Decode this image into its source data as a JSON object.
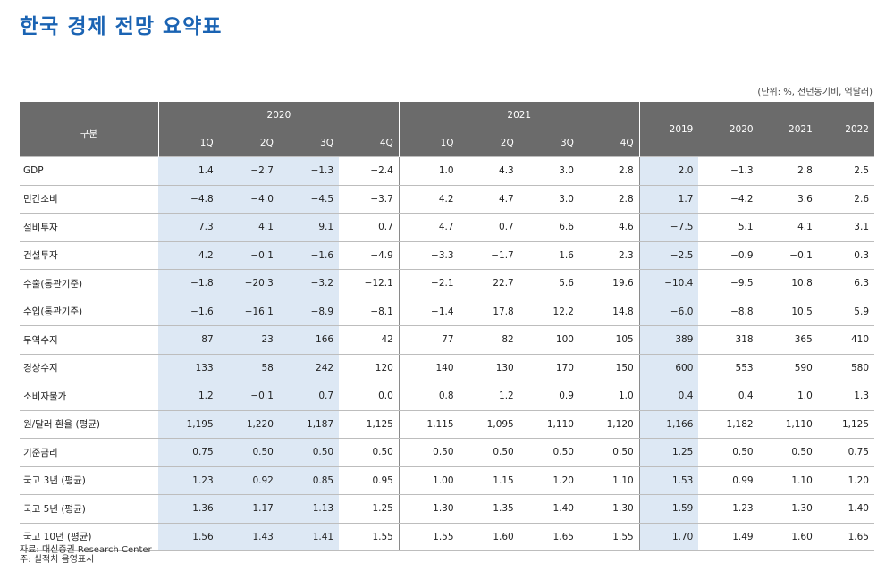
{
  "title": "한국 경제 전망 요약표",
  "unit": "(단위: %, 전년동기비, 억달러)",
  "header": {
    "label": "구분",
    "year_2020": "2020",
    "year_2021": "2021",
    "quarters": [
      "1Q",
      "2Q",
      "3Q",
      "4Q",
      "1Q",
      "2Q",
      "3Q",
      "4Q"
    ],
    "annual": [
      "2019",
      "2020",
      "2021",
      "2022"
    ]
  },
  "rows": [
    {
      "label": "GDP",
      "values": [
        "1.4",
        "−2.7",
        "−1.3",
        "−2.4",
        "1.0",
        "4.3",
        "3.0",
        "2.8",
        "2.0",
        "−1.3",
        "2.8",
        "2.5"
      ]
    },
    {
      "label": "민간소비",
      "values": [
        "−4.8",
        "−4.0",
        "−4.5",
        "−3.7",
        "4.2",
        "4.7",
        "3.0",
        "2.8",
        "1.7",
        "−4.2",
        "3.6",
        "2.6"
      ]
    },
    {
      "label": "설비투자",
      "values": [
        "7.3",
        "4.1",
        "9.1",
        "0.7",
        "4.7",
        "0.7",
        "6.6",
        "4.6",
        "−7.5",
        "5.1",
        "4.1",
        "3.1"
      ]
    },
    {
      "label": "건설투자",
      "values": [
        "4.2",
        "−0.1",
        "−1.6",
        "−4.9",
        "−3.3",
        "−1.7",
        "1.6",
        "2.3",
        "−2.5",
        "−0.9",
        "−0.1",
        "0.3"
      ]
    },
    {
      "label": "수출(통관기준)",
      "values": [
        "−1.8",
        "−20.3",
        "−3.2",
        "−12.1",
        "−2.1",
        "22.7",
        "5.6",
        "19.6",
        "−10.4",
        "−9.5",
        "10.8",
        "6.3"
      ]
    },
    {
      "label": "수입(통관기준)",
      "values": [
        "−1.6",
        "−16.1",
        "−8.9",
        "−8.1",
        "−1.4",
        "17.8",
        "12.2",
        "14.8",
        "−6.0",
        "−8.8",
        "10.5",
        "5.9"
      ]
    },
    {
      "label": "무역수지",
      "values": [
        "87",
        "23",
        "166",
        "42",
        "77",
        "82",
        "100",
        "105",
        "389",
        "318",
        "365",
        "410"
      ]
    },
    {
      "label": "경상수지",
      "values": [
        "133",
        "58",
        "242",
        "120",
        "140",
        "130",
        "170",
        "150",
        "600",
        "553",
        "590",
        "580"
      ]
    },
    {
      "label": "소비자물가",
      "values": [
        "1.2",
        "−0.1",
        "0.7",
        "0.0",
        "0.8",
        "1.2",
        "0.9",
        "1.0",
        "0.4",
        "0.4",
        "1.0",
        "1.3"
      ]
    },
    {
      "label": "원/달러 환율 (평균)",
      "values": [
        "1,195",
        "1,220",
        "1,187",
        "1,125",
        "1,115",
        "1,095",
        "1,110",
        "1,120",
        "1,166",
        "1,182",
        "1,110",
        "1,125"
      ]
    },
    {
      "label": "기준금리",
      "values": [
        "0.75",
        "0.50",
        "0.50",
        "0.50",
        "0.50",
        "0.50",
        "0.50",
        "0.50",
        "1.25",
        "0.50",
        "0.50",
        "0.75"
      ]
    },
    {
      "label": " 국고 3년 (평균)",
      "values": [
        "1.23",
        "0.92",
        "0.85",
        "0.95",
        "1.00",
        "1.15",
        "1.20",
        "1.10",
        "1.53",
        "0.99",
        "1.10",
        "1.20"
      ]
    },
    {
      "label": " 국고 5년 (평균)",
      "values": [
        "1.36",
        "1.17",
        "1.13",
        "1.25",
        "1.30",
        "1.35",
        "1.40",
        "1.30",
        "1.59",
        "1.23",
        "1.30",
        "1.40"
      ]
    },
    {
      "label": " 국고 10년 (평균)",
      "values": [
        "1.56",
        "1.43",
        "1.41",
        "1.55",
        "1.55",
        "1.60",
        "1.65",
        "1.55",
        "1.70",
        "1.49",
        "1.60",
        "1.65"
      ]
    }
  ],
  "notes": {
    "source": "자료: 대신증권 Research Center",
    "note": "주: 실적치 음영표시"
  }
}
